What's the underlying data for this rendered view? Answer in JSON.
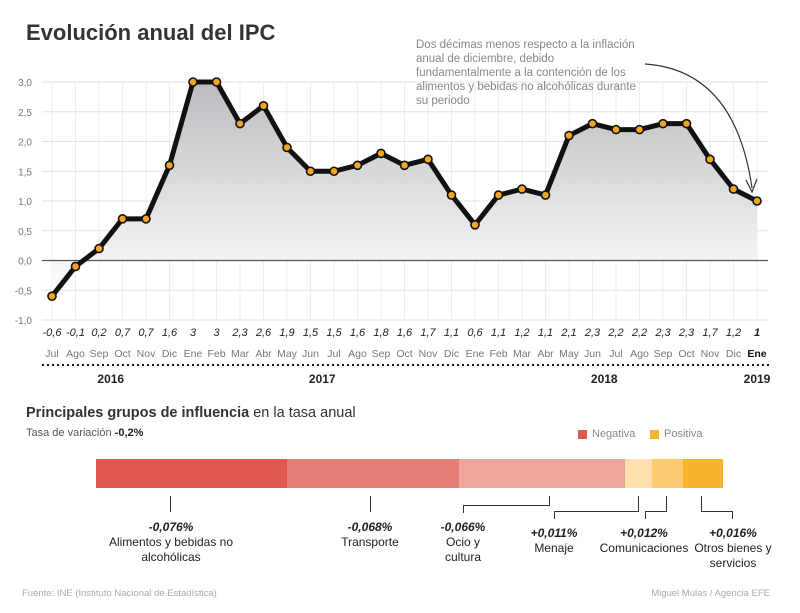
{
  "title": "Evolución anual del IPC",
  "annotation": "Dos décimas menos respecto a la inflación anual de diciembre, debido fundamentalmente a la contención de los alimentos y bebidas no alcohólicas durante su periodo",
  "chart_data": {
    "type": "line",
    "x": [
      "Jul",
      "Ago",
      "Sep",
      "Oct",
      "Nov",
      "Dic",
      "Ene",
      "Feb",
      "Mar",
      "Abr",
      "May",
      "Jun",
      "Jul",
      "Ago",
      "Sep",
      "Oct",
      "Nov",
      "Dic",
      "Ene",
      "Feb",
      "Mar",
      "Abr",
      "May",
      "Jun",
      "Jul",
      "Ago",
      "Sep",
      "Oct",
      "Nov",
      "Dic",
      "Ene"
    ],
    "values": [
      -0.6,
      -0.1,
      0.2,
      0.7,
      0.7,
      1.6,
      3,
      3,
      2.3,
      2.6,
      1.9,
      1.5,
      1.5,
      1.6,
      1.8,
      1.6,
      1.7,
      1.1,
      0.6,
      1.1,
      1.2,
      1.1,
      2.1,
      2.3,
      2.2,
      2.2,
      2.3,
      2.3,
      1.7,
      1.2,
      1
    ],
    "value_labels": [
      "-0,6",
      "-0,1",
      "0,2",
      "0,7",
      "0,7",
      "1,6",
      "3",
      "3",
      "2,3",
      "2,6",
      "1,9",
      "1,5",
      "1,5",
      "1,6",
      "1,8",
      "1,6",
      "1,7",
      "1,1",
      "0,6",
      "1,1",
      "1,2",
      "1,1",
      "2,1",
      "2,3",
      "2,2",
      "2,2",
      "2,3",
      "2,3",
      "1,7",
      "1,2",
      "1"
    ],
    "y_ticks": [
      "3,0",
      "2,5",
      "2,0",
      "1,5",
      "1,0",
      "0,5",
      "0,0",
      "-0,5",
      "-1,0"
    ],
    "ylim": [
      -1,
      3
    ],
    "years": [
      {
        "label": "2016",
        "center_index": 2.5
      },
      {
        "label": "2017",
        "center_index": 11.5
      },
      {
        "label": "2018",
        "center_index": 23.5
      },
      {
        "label": "2019",
        "center_index": 30
      }
    ],
    "grid": true
  },
  "influence": {
    "title_bold": "Principales grupos de influencia",
    "title_rest": " en la tasa anual",
    "subtitle_label": "Tasa de variación ",
    "subtitle_value": "-0,2%",
    "legend": [
      {
        "label": "Negativa",
        "color": "#e0584f"
      },
      {
        "label": "Positiva",
        "color": "#f6b42c"
      }
    ],
    "groups": [
      {
        "value": "-0,076%",
        "name": "Alimentos y bebidas no alcohólicas",
        "amount": 0.076,
        "color": "#e0584f"
      },
      {
        "value": "-0,068%",
        "name": "Transporte",
        "amount": 0.068,
        "color": "#e77e76"
      },
      {
        "value": "-0,066%",
        "name": "Ocio y cultura",
        "amount": 0.066,
        "color": "#f0a49b"
      },
      {
        "value": "+0,011%",
        "name": "Menaje",
        "amount": 0.011,
        "color": "#fde0ad"
      },
      {
        "value": "+0,012%",
        "name": "Comunicaciones",
        "amount": 0.012,
        "color": "#fbcb72"
      },
      {
        "value": "+0,016%",
        "name": "Otros bienes y servicios",
        "amount": 0.016,
        "color": "#f6b42c"
      }
    ]
  },
  "footer": {
    "source": "Fuente: INE (Instituto Nacional de Estadística)",
    "credit": "Miguel Mulas / Agencia EFE"
  }
}
